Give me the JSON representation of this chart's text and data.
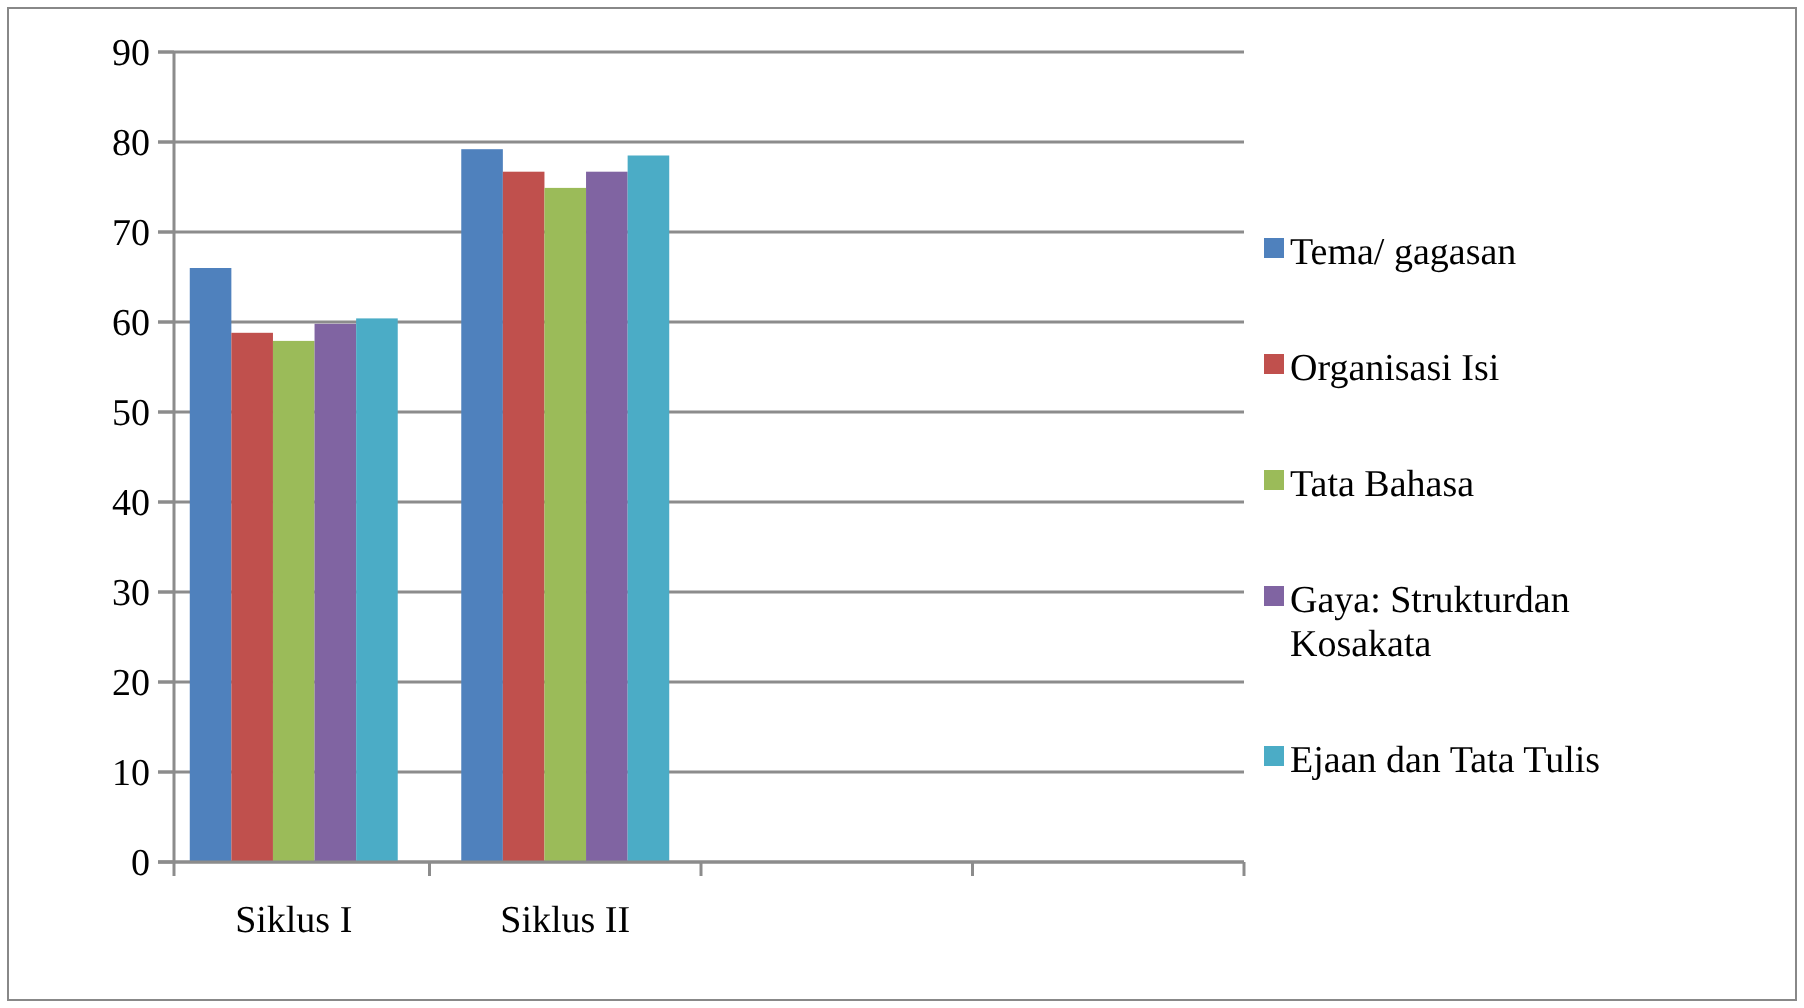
{
  "chart_data": {
    "type": "bar",
    "categories": [
      "Siklus I",
      "Siklus II",
      null,
      null
    ],
    "series": [
      {
        "name": "Tema/ gagasan",
        "color": "#4f81bd",
        "values": [
          66,
          79.2,
          null,
          null
        ]
      },
      {
        "name": "Organisasi Isi",
        "color": "#c0504d",
        "values": [
          58.8,
          76.7,
          null,
          null
        ]
      },
      {
        "name": "Tata Bahasa",
        "color": "#9bbb59",
        "values": [
          57.9,
          74.9,
          null,
          null
        ]
      },
      {
        "name": "Gaya: Strukturdan Kosakata",
        "color": "#8064a2",
        "values": [
          59.8,
          76.7,
          null,
          null
        ]
      },
      {
        "name": "Ejaan dan Tata Tulis",
        "color": "#4bacc6",
        "values": [
          60.4,
          78.5,
          null,
          null
        ]
      }
    ],
    "ylim": [
      0,
      90
    ],
    "yticks": [
      0,
      10,
      20,
      30,
      40,
      50,
      60,
      70,
      80,
      90
    ],
    "grid": "y",
    "legend": "right"
  }
}
